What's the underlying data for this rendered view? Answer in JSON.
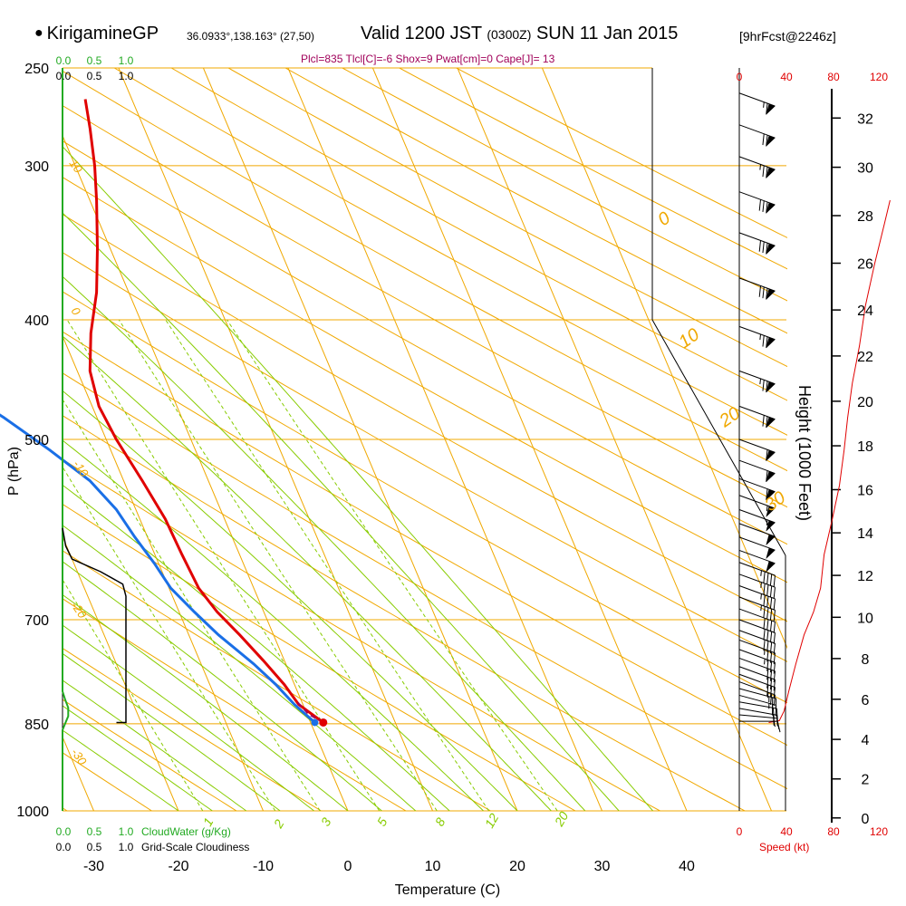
{
  "header": {
    "station": "KirigamineGP",
    "coords": "36.0933°,138.163° (27,50)",
    "valid_main": "Valid 1200 JST",
    "valid_z": "(0300Z)",
    "valid_date": "SUN 11 Jan 2015",
    "forecast": "[9hrFcst@2246z]",
    "params": "Plcl=835 Tlcl[C]=-6 Shox=9 Pwat[cm]=0 Cape[J]= 13"
  },
  "colors": {
    "temperature": "#e00000",
    "dewpoint": "#1a6fe6",
    "isobar_isotherm": "#f0a800",
    "dry_adiabat": "#f0a800",
    "moist_adiabat": "#88cc00",
    "mixing_ratio": "#88cc00",
    "cloudwater": "#22aa22",
    "cloudiness": "#000000",
    "speed": "#e00000",
    "params_text": "#a0005a"
  },
  "chart_data": {
    "type": "skew-t",
    "xlabel": "Temperature (C)",
    "ylabel": "P (hPa)",
    "right_label": "Height (1000 Feet)",
    "x_ticks": [
      "-30",
      "-20",
      "-10",
      "0",
      "10",
      "20",
      "30",
      "40"
    ],
    "xlim": [
      -33.6,
      36.0
    ],
    "y_scale": "log-pressure",
    "y_ticks": [
      "250",
      "300",
      "400",
      "500",
      "700",
      "850",
      "1000"
    ],
    "ylim": [
      1000,
      250
    ],
    "height_ticks": [
      "0",
      "2",
      "4",
      "6",
      "8",
      "10",
      "12",
      "14",
      "16",
      "18",
      "20",
      "22",
      "24",
      "26",
      "28",
      "30",
      "32"
    ],
    "dry_adiabat_labels": [
      "10",
      "0",
      "-10",
      "-20",
      "-30"
    ],
    "top_theta_labels": [
      "0",
      "10",
      "20",
      "30"
    ],
    "mixing_ratio_labels": [
      "1",
      "2",
      "3",
      "5",
      "8",
      "12",
      "20"
    ],
    "series": [
      {
        "name": "Temperature",
        "points": [
          {
            "p": 848,
            "t": 1.5
          },
          {
            "p": 820,
            "t": -0.5
          },
          {
            "p": 790,
            "t": -1.2
          },
          {
            "p": 755,
            "t": -2.5
          },
          {
            "p": 720,
            "t": -4.0
          },
          {
            "p": 690,
            "t": -5.5
          },
          {
            "p": 660,
            "t": -6.5
          },
          {
            "p": 620,
            "t": -6.8
          },
          {
            "p": 580,
            "t": -7.0
          },
          {
            "p": 540,
            "t": -7.8
          },
          {
            "p": 500,
            "t": -8.8
          },
          {
            "p": 470,
            "t": -9.2
          },
          {
            "p": 440,
            "t": -8.5
          },
          {
            "p": 410,
            "t": -6.5
          },
          {
            "p": 380,
            "t": -3.8
          },
          {
            "p": 350,
            "t": -1.5
          },
          {
            "p": 320,
            "t": 0.8
          },
          {
            "p": 300,
            "t": 2.3
          },
          {
            "p": 280,
            "t": 3.6
          },
          {
            "p": 265,
            "t": 4.5
          }
        ]
      },
      {
        "name": "Dewpoint",
        "points": [
          {
            "p": 848,
            "t": 0.5
          },
          {
            "p": 820,
            "t": -1.0
          },
          {
            "p": 790,
            "t": -2.2
          },
          {
            "p": 760,
            "t": -3.8
          },
          {
            "p": 720,
            "t": -6.5
          },
          {
            "p": 690,
            "t": -8.2
          },
          {
            "p": 660,
            "t": -9.8
          },
          {
            "p": 630,
            "t": -10.5
          },
          {
            "p": 600,
            "t": -11.5
          },
          {
            "p": 570,
            "t": -12.3
          },
          {
            "p": 540,
            "t": -14.0
          },
          {
            "p": 510,
            "t": -17.2
          },
          {
            "p": 480,
            "t": -21.0
          },
          {
            "p": 450,
            "t": -25.5
          },
          {
            "p": 430,
            "t": -28.2
          },
          {
            "p": 410,
            "t": -31.3
          },
          {
            "p": 400,
            "t": -32.5
          },
          {
            "p": 385,
            "t": -33.8
          },
          {
            "p": 370,
            "t": -35.0
          },
          {
            "p": 350,
            "t": -33.0
          },
          {
            "p": 330,
            "t": -31.0
          },
          {
            "p": 310,
            "t": -29.0
          },
          {
            "p": 290,
            "t": -26.5
          },
          {
            "p": 265,
            "t": -23.5
          }
        ]
      },
      {
        "name": "Parcel",
        "points": [
          {
            "p": 848,
            "t": 1.5
          },
          {
            "p": 835,
            "t": 0.2
          },
          {
            "p": 815,
            "t": -0.6
          }
        ]
      }
    ],
    "surface_points": {
      "temperature": {
        "p": 848,
        "t": 1.5
      },
      "dewpoint": {
        "p": 848,
        "t": 0.5
      }
    },
    "wind_barbs": [
      {
        "p": 846,
        "speed_kt": 15,
        "dir": 270
      },
      {
        "p": 836,
        "speed_kt": 15,
        "dir": 275
      },
      {
        "p": 826,
        "speed_kt": 20,
        "dir": 280
      },
      {
        "p": 816,
        "speed_kt": 20,
        "dir": 280
      },
      {
        "p": 806,
        "speed_kt": 25,
        "dir": 285
      },
      {
        "p": 796,
        "speed_kt": 25,
        "dir": 285
      },
      {
        "p": 786,
        "speed_kt": 25,
        "dir": 290
      },
      {
        "p": 775,
        "speed_kt": 30,
        "dir": 290
      },
      {
        "p": 764,
        "speed_kt": 30,
        "dir": 290
      },
      {
        "p": 752,
        "speed_kt": 30,
        "dir": 290
      },
      {
        "p": 740,
        "speed_kt": 35,
        "dir": 290
      },
      {
        "p": 727,
        "speed_kt": 35,
        "dir": 290
      },
      {
        "p": 714,
        "speed_kt": 40,
        "dir": 290
      },
      {
        "p": 700,
        "speed_kt": 40,
        "dir": 290
      },
      {
        "p": 686,
        "speed_kt": 40,
        "dir": 290
      },
      {
        "p": 671,
        "speed_kt": 45,
        "dir": 290
      },
      {
        "p": 657,
        "speed_kt": 45,
        "dir": 290
      },
      {
        "p": 643,
        "speed_kt": 45,
        "dir": 290
      },
      {
        "p": 629,
        "speed_kt": 45,
        "dir": 290
      },
      {
        "p": 615,
        "speed_kt": 50,
        "dir": 290
      },
      {
        "p": 600,
        "speed_kt": 50,
        "dir": 290
      },
      {
        "p": 585,
        "speed_kt": 50,
        "dir": 290
      },
      {
        "p": 570,
        "speed_kt": 55,
        "dir": 290
      },
      {
        "p": 555,
        "speed_kt": 55,
        "dir": 290
      },
      {
        "p": 538,
        "speed_kt": 60,
        "dir": 290
      },
      {
        "p": 520,
        "speed_kt": 60,
        "dir": 290
      },
      {
        "p": 500,
        "speed_kt": 60,
        "dir": 290
      },
      {
        "p": 470,
        "speed_kt": 70,
        "dir": 290
      },
      {
        "p": 440,
        "speed_kt": 75,
        "dir": 290
      },
      {
        "p": 405,
        "speed_kt": 75,
        "dir": 290
      },
      {
        "p": 370,
        "speed_kt": 80,
        "dir": 290
      },
      {
        "p": 340,
        "speed_kt": 80,
        "dir": 290
      },
      {
        "p": 315,
        "speed_kt": 80,
        "dir": 290
      },
      {
        "p": 295,
        "speed_kt": 75,
        "dir": 290
      },
      {
        "p": 278,
        "speed_kt": 70,
        "dir": 290
      },
      {
        "p": 262,
        "speed_kt": 65,
        "dir": 290
      }
    ],
    "cloudwater": {
      "label": "CloudWater (g/Kg)",
      "ticks": [
        "0.0",
        "0.5",
        "1.0"
      ],
      "xlim": [
        0,
        1.0
      ],
      "points": [
        {
          "p": 1000,
          "v": 0.0
        },
        {
          "p": 860,
          "v": 0.0
        },
        {
          "p": 850,
          "v": 0.04
        },
        {
          "p": 838,
          "v": 0.09
        },
        {
          "p": 825,
          "v": 0.09
        },
        {
          "p": 812,
          "v": 0.04
        },
        {
          "p": 800,
          "v": 0.0
        },
        {
          "p": 250,
          "v": 0.0
        }
      ]
    },
    "cloudiness": {
      "label": "Grid-Scale Cloudiness",
      "ticks": [
        "0.0",
        "0.5",
        "1.0"
      ],
      "xlim": [
        0,
        1.0
      ],
      "points": [
        {
          "p": 590,
          "v": 0.0
        },
        {
          "p": 610,
          "v": 0.05
        },
        {
          "p": 625,
          "v": 0.15
        },
        {
          "p": 640,
          "v": 0.6
        },
        {
          "p": 655,
          "v": 0.95
        },
        {
          "p": 670,
          "v": 1.0
        },
        {
          "p": 848,
          "v": 1.0
        },
        {
          "p": 848,
          "v": 0.85
        }
      ]
    },
    "speed": {
      "label": "Speed (kt)",
      "ticks": [
        "0",
        "40",
        "80",
        "120"
      ],
      "xlim": [
        0,
        120
      ],
      "points": [
        {
          "p": 848,
          "v": 25
        },
        {
          "p": 845,
          "v": 34
        },
        {
          "p": 830,
          "v": 38
        },
        {
          "p": 800,
          "v": 42
        },
        {
          "p": 760,
          "v": 48
        },
        {
          "p": 720,
          "v": 55
        },
        {
          "p": 690,
          "v": 63
        },
        {
          "p": 660,
          "v": 69
        },
        {
          "p": 620,
          "v": 72
        },
        {
          "p": 580,
          "v": 79
        },
        {
          "p": 545,
          "v": 85
        },
        {
          "p": 510,
          "v": 89
        },
        {
          "p": 480,
          "v": 92
        },
        {
          "p": 450,
          "v": 96
        },
        {
          "p": 420,
          "v": 102
        },
        {
          "p": 390,
          "v": 107
        },
        {
          "p": 360,
          "v": 115
        },
        {
          "p": 335,
          "v": 123
        },
        {
          "p": 320,
          "v": 128
        }
      ]
    }
  }
}
